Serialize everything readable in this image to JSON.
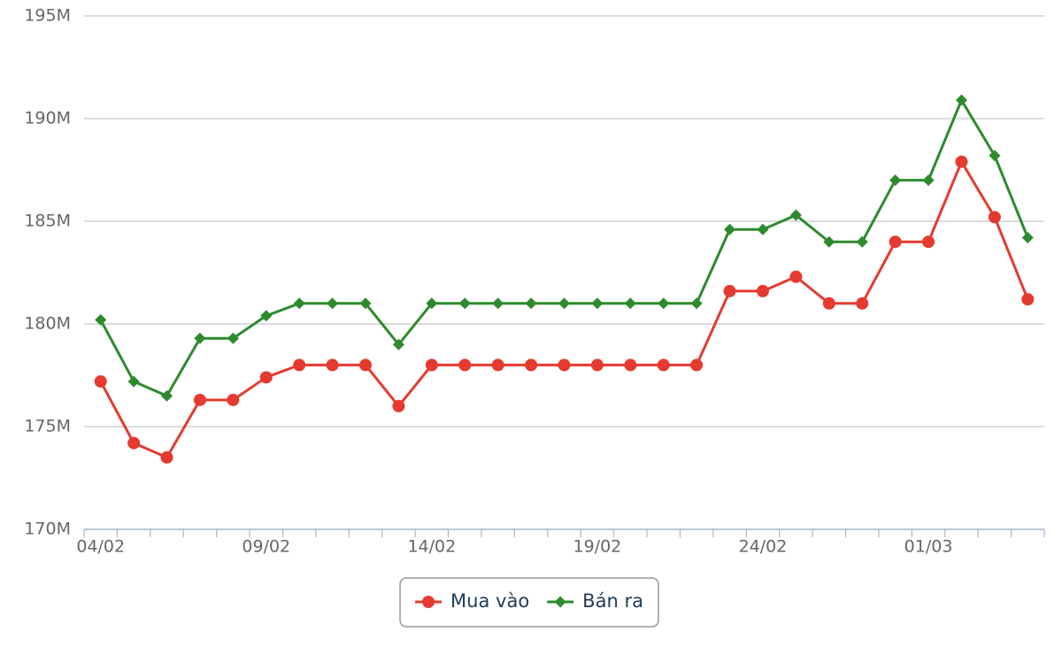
{
  "chart_data": {
    "type": "line",
    "categories": [
      "04/02",
      null,
      null,
      null,
      null,
      "09/02",
      null,
      null,
      null,
      null,
      "14/02",
      null,
      null,
      null,
      null,
      "19/02",
      null,
      null,
      null,
      null,
      "24/02",
      null,
      null,
      null,
      null,
      "01/03",
      null,
      null,
      null
    ],
    "series": [
      {
        "name": "Mua vào",
        "color": "#e53a2f",
        "marker": "circle",
        "values": [
          177.2,
          174.2,
          173.5,
          176.3,
          176.3,
          177.4,
          178,
          178,
          178,
          176,
          178,
          178,
          178,
          178,
          178,
          178,
          178,
          178,
          178,
          181.6,
          181.6,
          182.3,
          181,
          181,
          184,
          184,
          187.9,
          185.2,
          181.2
        ]
      },
      {
        "name": "Bán ra",
        "color": "#2e8a2e",
        "marker": "diamond",
        "values": [
          180.2,
          177.2,
          176.5,
          179.3,
          179.3,
          180.4,
          181,
          181,
          181,
          179,
          181,
          181,
          181,
          181,
          181,
          181,
          181,
          181,
          181,
          184.6,
          184.6,
          185.3,
          184,
          184,
          187,
          187,
          190.9,
          188.2,
          184.2
        ]
      }
    ],
    "ylim": [
      170,
      195
    ],
    "yticks": [
      {
        "value": 170,
        "label": "170M"
      },
      {
        "value": 175,
        "label": "175M"
      },
      {
        "value": 180,
        "label": "180M"
      },
      {
        "value": 185,
        "label": "185M"
      },
      {
        "value": 190,
        "label": "190M"
      },
      {
        "value": 195,
        "label": "195M"
      }
    ],
    "grid": true,
    "legend": "bottom"
  }
}
